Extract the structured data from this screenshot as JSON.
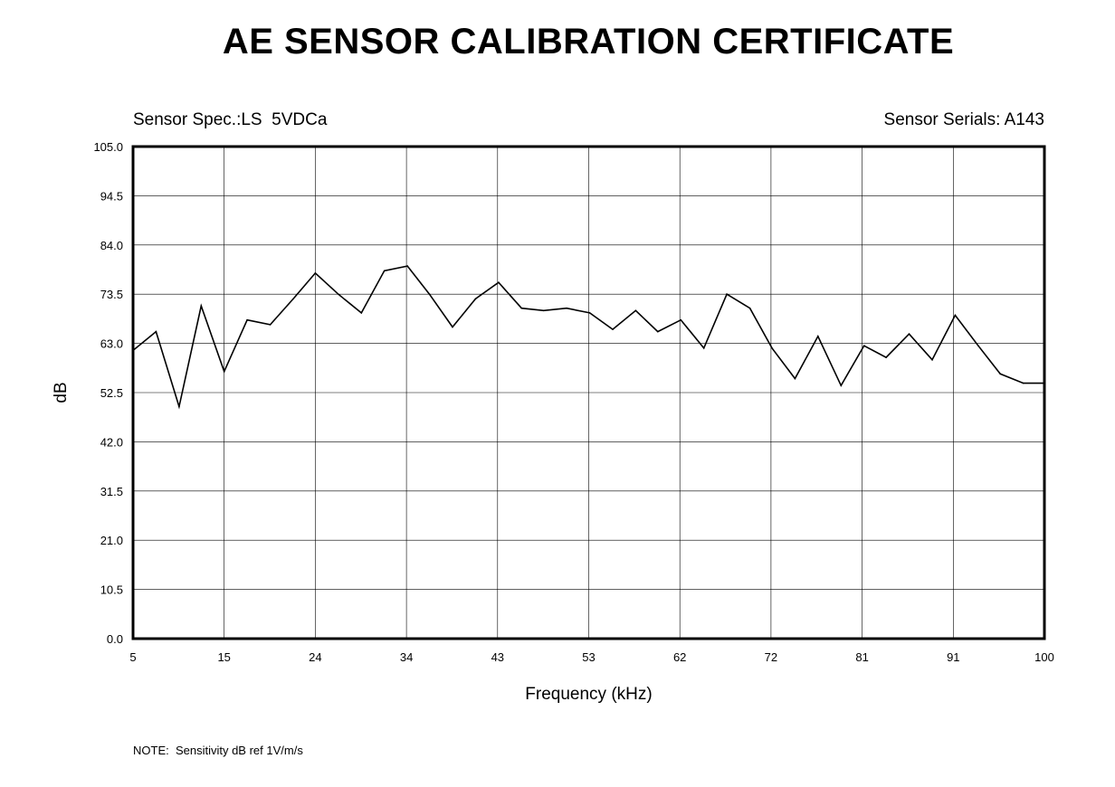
{
  "header": {
    "title": "AE SENSOR CALIBRATION CERTIFICATE",
    "sensor_spec": "Sensor Spec.:LS  5VDCa",
    "sensor_serials": "Sensor Serials: A143"
  },
  "footer": {
    "note": "NOTE:  Sensitivity dB ref 1V/m/s"
  },
  "chart_data": {
    "type": "line",
    "title": "",
    "xlabel": "Frequency (kHz)",
    "ylabel": "dB",
    "xlim": [
      5,
      100
    ],
    "ylim": [
      0,
      105
    ],
    "x_ticks": [
      "5",
      "15",
      "24",
      "34",
      "43",
      "53",
      "62",
      "72",
      "81",
      "91",
      "100"
    ],
    "y_ticks": [
      "0.0",
      "10.5",
      "21.0",
      "31.5",
      "42.0",
      "52.5",
      "63.0",
      "73.5",
      "84.0",
      "94.5",
      "105.0"
    ],
    "grid": true,
    "line_color": "#000000",
    "series": [
      {
        "x": [
          5.0,
          7.4,
          9.8,
          12.1,
          14.5,
          16.9,
          19.3,
          21.7,
          24.0,
          26.4,
          28.8,
          31.2,
          33.6,
          35.9,
          38.3,
          40.7,
          43.1,
          45.5,
          47.8,
          50.2,
          52.6,
          55.0,
          57.4,
          59.7,
          62.1,
          64.5,
          66.9,
          69.3,
          71.6,
          74.0,
          76.4,
          78.8,
          81.2,
          83.5,
          85.9,
          88.3,
          90.7,
          93.1,
          95.4,
          97.8,
          100.0
        ],
        "y": [
          61.5,
          65.5,
          49.5,
          71.0,
          57.0,
          68.0,
          67.0,
          72.5,
          78.0,
          73.5,
          69.5,
          78.5,
          79.5,
          73.5,
          66.5,
          72.5,
          76.0,
          70.5,
          70.0,
          70.5,
          69.5,
          66.0,
          70.0,
          65.5,
          68.0,
          62.0,
          73.5,
          70.5,
          62.0,
          55.5,
          64.5,
          54.0,
          62.5,
          60.0,
          65.0,
          59.5,
          69.0,
          62.5,
          56.5,
          54.5,
          54.5
        ]
      }
    ]
  }
}
